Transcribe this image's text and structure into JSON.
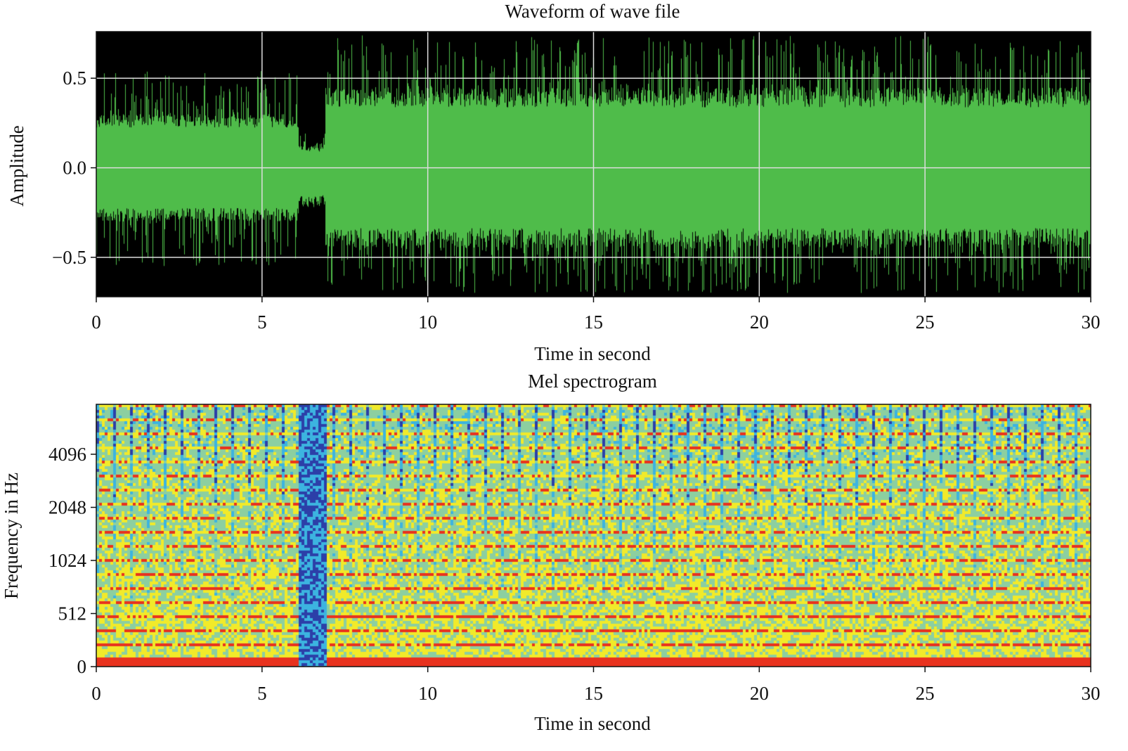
{
  "chart_data": [
    {
      "type": "line",
      "title": "Waveform of wave file",
      "xlabel": "Time in second",
      "ylabel": "Amplitude",
      "xlim": [
        0,
        30
      ],
      "ylim": [
        -0.72,
        0.76
      ],
      "xticks": [
        "0",
        "5",
        "10",
        "15",
        "20",
        "25",
        "30"
      ],
      "xtick_values": [
        0,
        5,
        10,
        15,
        20,
        25,
        30
      ],
      "yticks": [
        "0.5",
        "0.0",
        "−0.5"
      ],
      "ytick_values": [
        0.5,
        0.0,
        -0.5
      ],
      "grid": true,
      "background": "#000000",
      "line_color": "#4fbc4a",
      "envelope": [
        {
          "t_start": 0.0,
          "t_end": 6.1,
          "body_max": 0.3,
          "body_min": -0.3,
          "peak_max": 0.55,
          "peak_min": -0.55
        },
        {
          "t_start": 6.1,
          "t_end": 6.9,
          "body_max": 0.12,
          "body_min": -0.2,
          "peak_max": 0.2,
          "peak_min": -0.22
        },
        {
          "t_start": 6.9,
          "t_end": 30.0,
          "body_max": 0.45,
          "body_min": -0.45,
          "peak_max": 0.74,
          "peak_min": -0.7
        }
      ]
    },
    {
      "type": "heatmap",
      "title": "Mel spectrogram",
      "xlabel": "Time in second",
      "ylabel": "Frequency in Hz",
      "xlim": [
        0,
        30
      ],
      "ylim": [
        0,
        8000
      ],
      "yscale": "mel",
      "xticks": [
        "0",
        "5",
        "10",
        "15",
        "20",
        "25",
        "30"
      ],
      "xtick_values": [
        0,
        5,
        10,
        15,
        20,
        25,
        30
      ],
      "yticks": [
        "0",
        "512",
        "1024",
        "2048",
        "4096"
      ],
      "ytick_values": [
        0,
        512,
        1024,
        2048,
        4096
      ],
      "colormap": "jet",
      "colors": [
        "#2c3fa8",
        "#3cb4e0",
        "#8ccfa0",
        "#f1ea2a",
        "#e8321e"
      ],
      "notes_low_energy_segment": [
        6.1,
        6.9
      ]
    }
  ]
}
